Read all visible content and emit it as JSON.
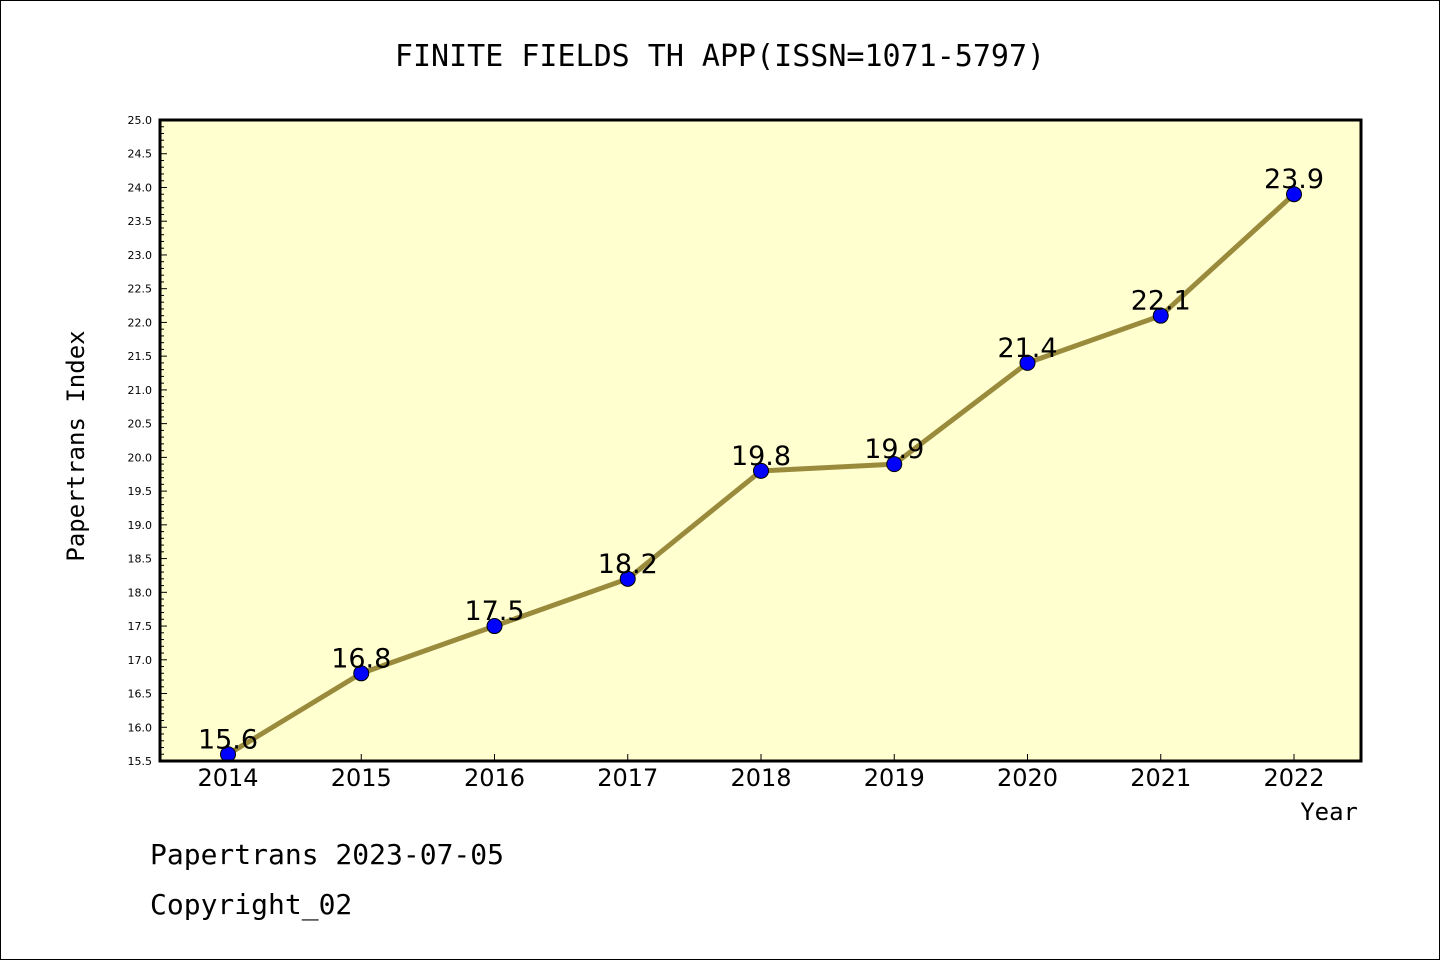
{
  "chart_data": {
    "type": "line",
    "title": "FINITE FIELDS TH APP(ISSN=1071-5797)",
    "xlabel": "Year",
    "ylabel": "Papertrans Index",
    "categories": [
      "2014",
      "2015",
      "2016",
      "2017",
      "2018",
      "2019",
      "2020",
      "2021",
      "2022"
    ],
    "values": [
      15.6,
      16.8,
      17.5,
      18.2,
      19.8,
      19.9,
      21.4,
      22.1,
      23.9
    ],
    "ylim": [
      15.5,
      25.0
    ],
    "ytick_step": 0.5,
    "grid": false,
    "line_color": "#9a8a3c",
    "marker_color": "#0000ff",
    "plot_background": "#ffffd0"
  },
  "footer": {
    "line1": "Papertrans 2023-07-05",
    "line2": "Copyright_02"
  }
}
